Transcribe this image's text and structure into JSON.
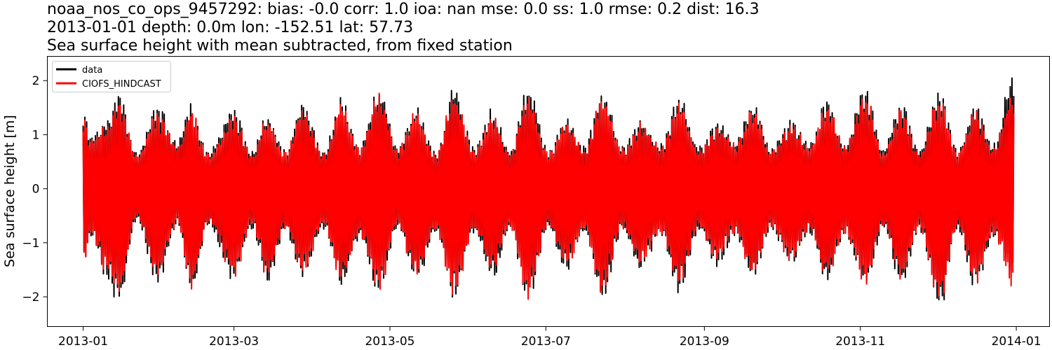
{
  "chart_data": {
    "type": "line",
    "title_lines": [
      "noaa_nos_co_ops_9457292: bias: -0.0  corr: 1.0  ioa: nan  mse: 0.0  ss: 1.0  rmse: 0.2  dist: 16.3",
      "2013-01-01 depth: 0.0m lon: -152.51 lat: 57.73",
      "Sea surface height with mean subtracted, from fixed station"
    ],
    "xlabel": "",
    "ylabel": "Sea surface height [m]",
    "x_range": [
      "2012-12-18",
      "2014-01-14"
    ],
    "ylim": [
      -2.55,
      2.45
    ],
    "x_ticks": [
      "2013-01",
      "2013-03",
      "2013-05",
      "2013-07",
      "2013-09",
      "2013-11",
      "2014-01"
    ],
    "y_ticks": [
      2,
      1,
      0,
      -1,
      -2
    ],
    "y_tick_labels": [
      "2",
      "1",
      "0",
      "−1",
      "−2"
    ],
    "grid": false,
    "legend": {
      "placement": "top-left"
    },
    "series": [
      {
        "name": "data",
        "color": "#000000",
        "x_range": [
          "2013-01-01",
          "2013-12-31"
        ],
        "description": "hourly tidal sea surface height, semidiurnal oscillation modulated by spring-neap cycle",
        "envelope": [
          {
            "x": "2013-01-01",
            "max": 1.6,
            "min": -1.45
          },
          {
            "x": "2013-01-04",
            "max": 1.0,
            "min": -0.9
          },
          {
            "x": "2013-01-10",
            "max": 1.3,
            "min": -1.7
          },
          {
            "x": "2013-01-15",
            "max": 1.85,
            "min": -2.2
          },
          {
            "x": "2013-01-22",
            "max": 0.7,
            "min": -0.6
          },
          {
            "x": "2013-01-30",
            "max": 1.6,
            "min": -1.8
          },
          {
            "x": "2013-02-07",
            "max": 0.9,
            "min": -0.7
          },
          {
            "x": "2013-02-12",
            "max": 1.6,
            "min": -2.0
          },
          {
            "x": "2013-02-19",
            "max": 0.7,
            "min": -0.7
          },
          {
            "x": "2013-03-01",
            "max": 1.55,
            "min": -1.75
          },
          {
            "x": "2013-03-08",
            "max": 0.7,
            "min": -0.75
          },
          {
            "x": "2013-03-14",
            "max": 1.45,
            "min": -1.8
          },
          {
            "x": "2013-03-21",
            "max": 0.75,
            "min": -0.8
          },
          {
            "x": "2013-03-28",
            "max": 1.65,
            "min": -1.7
          },
          {
            "x": "2013-04-05",
            "max": 0.7,
            "min": -0.75
          },
          {
            "x": "2013-04-12",
            "max": 1.7,
            "min": -1.85
          },
          {
            "x": "2013-04-19",
            "max": 0.85,
            "min": -0.95
          },
          {
            "x": "2013-04-27",
            "max": 1.95,
            "min": -2.05
          },
          {
            "x": "2013-05-04",
            "max": 0.8,
            "min": -0.75
          },
          {
            "x": "2013-05-11",
            "max": 1.55,
            "min": -1.8
          },
          {
            "x": "2013-05-19",
            "max": 0.7,
            "min": -0.85
          },
          {
            "x": "2013-05-26",
            "max": 1.9,
            "min": -2.1
          },
          {
            "x": "2013-06-03",
            "max": 0.8,
            "min": -0.85
          },
          {
            "x": "2013-06-10",
            "max": 1.5,
            "min": -1.7
          },
          {
            "x": "2013-06-17",
            "max": 0.75,
            "min": -0.8
          },
          {
            "x": "2013-06-24",
            "max": 1.95,
            "min": -2.15
          },
          {
            "x": "2013-07-02",
            "max": 0.75,
            "min": -0.75
          },
          {
            "x": "2013-07-09",
            "max": 1.35,
            "min": -1.6
          },
          {
            "x": "2013-07-16",
            "max": 0.8,
            "min": -0.85
          },
          {
            "x": "2013-07-23",
            "max": 1.9,
            "min": -2.1
          },
          {
            "x": "2013-07-31",
            "max": 0.8,
            "min": -0.8
          },
          {
            "x": "2013-08-07",
            "max": 1.3,
            "min": -1.55
          },
          {
            "x": "2013-08-15",
            "max": 0.85,
            "min": -0.9
          },
          {
            "x": "2013-08-22",
            "max": 1.75,
            "min": -1.95
          },
          {
            "x": "2013-08-30",
            "max": 0.8,
            "min": -0.8
          },
          {
            "x": "2013-09-06",
            "max": 1.25,
            "min": -1.45
          },
          {
            "x": "2013-09-13",
            "max": 0.9,
            "min": -0.9
          },
          {
            "x": "2013-09-20",
            "max": 1.65,
            "min": -1.75
          },
          {
            "x": "2013-09-27",
            "max": 0.8,
            "min": -0.8
          },
          {
            "x": "2013-10-05",
            "max": 1.3,
            "min": -1.45
          },
          {
            "x": "2013-10-12",
            "max": 0.85,
            "min": -0.85
          },
          {
            "x": "2013-10-19",
            "max": 1.7,
            "min": -1.75
          },
          {
            "x": "2013-10-26",
            "max": 0.85,
            "min": -0.9
          },
          {
            "x": "2013-11-03",
            "max": 2.0,
            "min": -1.9
          },
          {
            "x": "2013-11-10",
            "max": 0.75,
            "min": -0.75
          },
          {
            "x": "2013-11-17",
            "max": 1.65,
            "min": -1.85
          },
          {
            "x": "2013-11-24",
            "max": 0.75,
            "min": -0.8
          },
          {
            "x": "2013-12-02",
            "max": 1.9,
            "min": -2.3
          },
          {
            "x": "2013-12-09",
            "max": 0.75,
            "min": -0.8
          },
          {
            "x": "2013-12-16",
            "max": 1.6,
            "min": -1.9
          },
          {
            "x": "2013-12-23",
            "max": 0.85,
            "min": -0.95
          },
          {
            "x": "2013-12-31",
            "max": 2.25,
            "min": -1.7
          }
        ]
      },
      {
        "name": "CIOFS_HINDCAST",
        "color": "#ff0000",
        "x_range": [
          "2013-01-01",
          "2013-12-31"
        ],
        "description": "modeled tidal sea surface height, closely matching data with slightly smaller extremes",
        "envelope": [
          {
            "x": "2013-01-01",
            "max": 1.4,
            "min": -1.5
          },
          {
            "x": "2013-01-04",
            "max": 0.95,
            "min": -0.85
          },
          {
            "x": "2013-01-10",
            "max": 1.2,
            "min": -1.6
          },
          {
            "x": "2013-01-15",
            "max": 1.75,
            "min": -2.05
          },
          {
            "x": "2013-01-22",
            "max": 0.65,
            "min": -0.55
          },
          {
            "x": "2013-01-30",
            "max": 1.45,
            "min": -1.7
          },
          {
            "x": "2013-02-07",
            "max": 0.85,
            "min": -0.65
          },
          {
            "x": "2013-02-12",
            "max": 1.5,
            "min": -1.9
          },
          {
            "x": "2013-02-19",
            "max": 0.65,
            "min": -0.65
          },
          {
            "x": "2013-03-01",
            "max": 1.4,
            "min": -1.65
          },
          {
            "x": "2013-03-08",
            "max": 0.65,
            "min": -0.7
          },
          {
            "x": "2013-03-14",
            "max": 1.35,
            "min": -1.7
          },
          {
            "x": "2013-03-21",
            "max": 0.7,
            "min": -0.75
          },
          {
            "x": "2013-03-28",
            "max": 1.55,
            "min": -1.6
          },
          {
            "x": "2013-04-05",
            "max": 0.65,
            "min": -0.7
          },
          {
            "x": "2013-04-12",
            "max": 1.6,
            "min": -1.75
          },
          {
            "x": "2013-04-19",
            "max": 0.8,
            "min": -0.9
          },
          {
            "x": "2013-04-27",
            "max": 1.8,
            "min": -1.95
          },
          {
            "x": "2013-05-04",
            "max": 0.75,
            "min": -0.7
          },
          {
            "x": "2013-05-11",
            "max": 1.45,
            "min": -1.7
          },
          {
            "x": "2013-05-19",
            "max": 0.65,
            "min": -0.8
          },
          {
            "x": "2013-05-26",
            "max": 1.8,
            "min": -2.05
          },
          {
            "x": "2013-06-03",
            "max": 0.75,
            "min": -0.8
          },
          {
            "x": "2013-06-10",
            "max": 1.4,
            "min": -1.6
          },
          {
            "x": "2013-06-17",
            "max": 0.7,
            "min": -0.75
          },
          {
            "x": "2013-06-24",
            "max": 1.85,
            "min": -2.1
          },
          {
            "x": "2013-07-02",
            "max": 0.7,
            "min": -0.7
          },
          {
            "x": "2013-07-09",
            "max": 1.3,
            "min": -1.5
          },
          {
            "x": "2013-07-16",
            "max": 0.75,
            "min": -0.8
          },
          {
            "x": "2013-07-23",
            "max": 1.8,
            "min": -2.0
          },
          {
            "x": "2013-07-31",
            "max": 0.75,
            "min": -0.75
          },
          {
            "x": "2013-08-07",
            "max": 1.25,
            "min": -1.45
          },
          {
            "x": "2013-08-15",
            "max": 0.8,
            "min": -0.85
          },
          {
            "x": "2013-08-22",
            "max": 1.65,
            "min": -1.85
          },
          {
            "x": "2013-08-30",
            "max": 0.75,
            "min": -0.75
          },
          {
            "x": "2013-09-06",
            "max": 1.2,
            "min": -1.4
          },
          {
            "x": "2013-09-13",
            "max": 0.85,
            "min": -0.85
          },
          {
            "x": "2013-09-20",
            "max": 1.55,
            "min": -1.65
          },
          {
            "x": "2013-09-27",
            "max": 0.75,
            "min": -0.75
          },
          {
            "x": "2013-10-05",
            "max": 1.25,
            "min": -1.35
          },
          {
            "x": "2013-10-12",
            "max": 0.8,
            "min": -0.8
          },
          {
            "x": "2013-10-19",
            "max": 1.6,
            "min": -1.65
          },
          {
            "x": "2013-10-26",
            "max": 0.8,
            "min": -0.85
          },
          {
            "x": "2013-11-03",
            "max": 1.85,
            "min": -1.8
          },
          {
            "x": "2013-11-10",
            "max": 0.7,
            "min": -0.7
          },
          {
            "x": "2013-11-17",
            "max": 1.55,
            "min": -1.75
          },
          {
            "x": "2013-11-24",
            "max": 0.7,
            "min": -0.75
          },
          {
            "x": "2013-12-02",
            "max": 1.75,
            "min": -2.15
          },
          {
            "x": "2013-12-09",
            "max": 0.7,
            "min": -0.75
          },
          {
            "x": "2013-12-16",
            "max": 1.5,
            "min": -1.8
          },
          {
            "x": "2013-12-23",
            "max": 0.8,
            "min": -0.9
          },
          {
            "x": "2013-12-31",
            "max": 1.85,
            "min": -1.85
          }
        ]
      }
    ]
  }
}
